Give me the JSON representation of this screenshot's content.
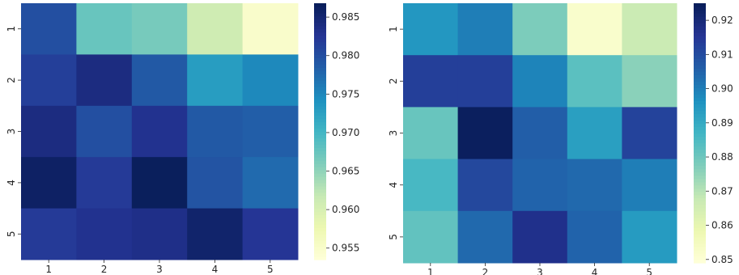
{
  "chart_data": [
    {
      "type": "heatmap",
      "x_categories": [
        "1",
        "2",
        "3",
        "4",
        "5"
      ],
      "y_categories": [
        "1",
        "2",
        "3",
        "4",
        "5"
      ],
      "values": [
        [
          0.98,
          0.9675,
          0.9665,
          0.961,
          0.955
        ],
        [
          0.9815,
          0.984,
          0.979,
          0.973,
          0.975
        ],
        [
          0.984,
          0.98,
          0.983,
          0.979,
          0.9785
        ],
        [
          0.986,
          0.982,
          0.9865,
          0.9795,
          0.9775
        ],
        [
          0.982,
          0.983,
          0.9835,
          0.9855,
          0.9825
        ]
      ],
      "colorscale": "YlGnBu",
      "vmin": 0.9535,
      "vmax": 0.9868,
      "colorbar_ticks": [
        "0.955",
        "0.960",
        "0.965",
        "0.970",
        "0.975",
        "0.980",
        "0.985"
      ]
    },
    {
      "type": "heatmap",
      "x_categories": [
        "1",
        "2",
        "3",
        "4",
        "5"
      ],
      "y_categories": [
        "1",
        "2",
        "3",
        "4",
        "5"
      ],
      "values": [
        [
          0.895,
          0.9,
          0.878,
          0.852,
          0.867
        ],
        [
          0.913,
          0.913,
          0.899,
          0.883,
          0.876
        ],
        [
          0.881,
          0.924,
          0.906,
          0.893,
          0.912
        ],
        [
          0.886,
          0.911,
          0.905,
          0.904,
          0.9
        ],
        [
          0.882,
          0.904,
          0.917,
          0.905,
          0.894
        ]
      ],
      "colorscale": "YlGnBu",
      "vmin": 0.849,
      "vmax": 0.925,
      "colorbar_ticks": [
        "0.85",
        "0.86",
        "0.87",
        "0.88",
        "0.89",
        "0.90",
        "0.91",
        "0.92"
      ]
    }
  ]
}
